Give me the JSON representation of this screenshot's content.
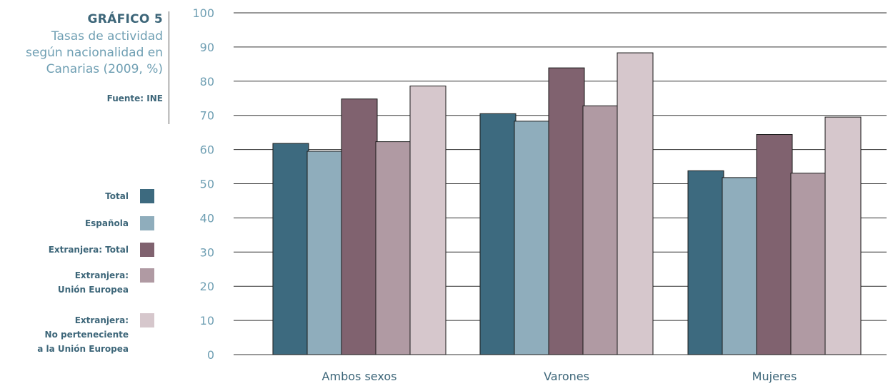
{
  "header": {
    "title": "GRÁFICO 5",
    "subtitle_lines": [
      "Tasas de actividad",
      "según nacionalidad en",
      "Canarias (2009, %)"
    ],
    "source": "Fuente: INE"
  },
  "colors": {
    "Total": "#3d6a7f",
    "Española": "#8fadbc",
    "Extranjera: Total": "#80626f",
    "Extranjera: Unión Europea": "#b09aa3",
    "Extranjera: No perteneciente a la Unión Europea": "#d6c7cc"
  },
  "legend": [
    {
      "label": "Total",
      "color": "#3d6a7f"
    },
    {
      "label": "Española",
      "color": "#8fadbc"
    },
    {
      "label": "Extranjera: Total",
      "color": "#80626f"
    },
    {
      "label": "Extranjera:\nUnión Europea",
      "color": "#b09aa3"
    },
    {
      "label": "Extranjera:\nNo perteneciente\na la Unión Europea",
      "color": "#d6c7cc"
    }
  ],
  "chart_data": {
    "type": "bar",
    "title": "GRÁFICO 5",
    "subtitle": "Tasas de actividad según nacionalidad en Canarias (2009, %)",
    "source": "Fuente: INE",
    "categories": [
      "Ambos sexos",
      "Varones",
      "Mujeres"
    ],
    "series": [
      {
        "name": "Total",
        "values": [
          61.8,
          70.5,
          53.8
        ]
      },
      {
        "name": "Española",
        "values": [
          59.5,
          68.3,
          51.8
        ]
      },
      {
        "name": "Extranjera: Total",
        "values": [
          74.8,
          83.9,
          64.4
        ]
      },
      {
        "name": "Extranjera: Unión Europea",
        "values": [
          62.3,
          72.8,
          53.1
        ]
      },
      {
        "name": "Extranjera: No perteneciente a la Unión Europea",
        "values": [
          78.6,
          88.3,
          69.5
        ]
      }
    ],
    "ylim": [
      0,
      100
    ],
    "yticks": [
      0,
      10,
      20,
      30,
      40,
      50,
      60,
      70,
      80,
      90,
      100
    ],
    "grid": true,
    "legend_position": "left"
  }
}
